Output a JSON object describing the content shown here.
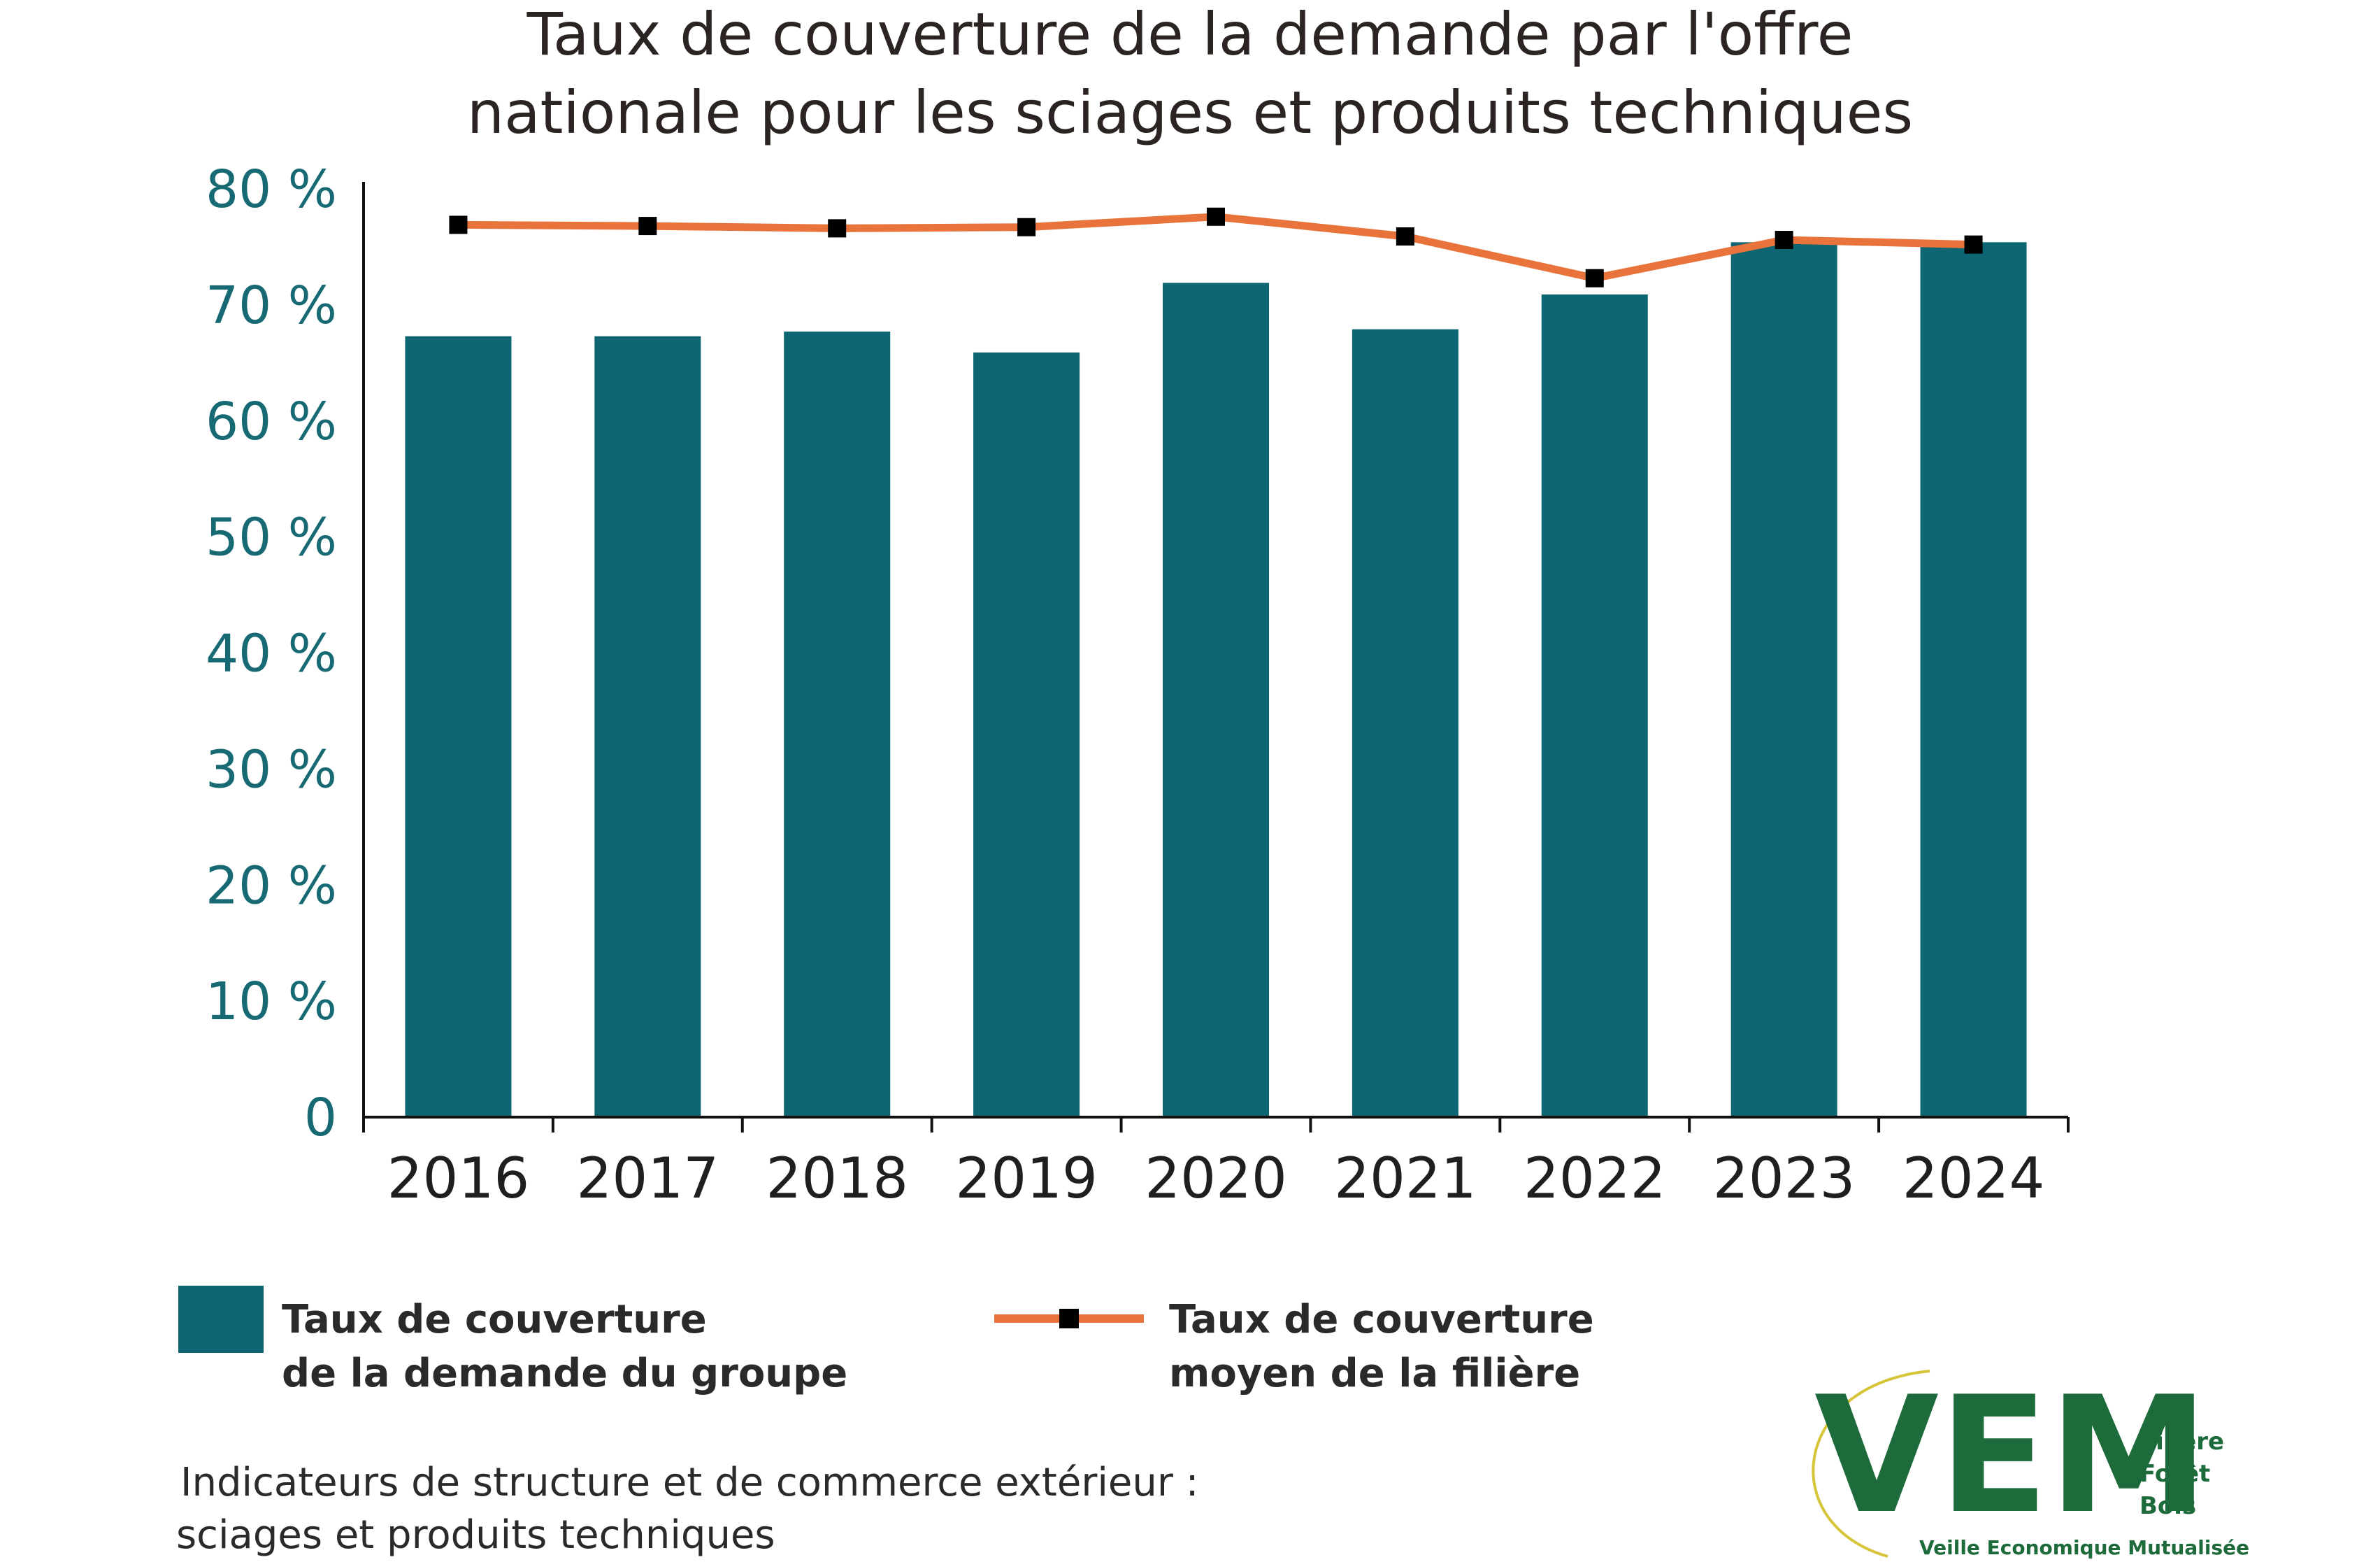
{
  "chart_data": {
    "type": "bar",
    "title": [
      "Taux de couverture de la demande par l'offre",
      "nationale pour les sciages et produits techniques"
    ],
    "categories": [
      "2016",
      "2017",
      "2018",
      "2019",
      "2020",
      "2021",
      "2022",
      "2023",
      "2024"
    ],
    "series": [
      {
        "name": "Taux de couverture de la demande du groupe",
        "type": "bar",
        "color": "#0d6672",
        "values": [
          67.3,
          67.3,
          67.7,
          65.9,
          71.9,
          67.9,
          70.9,
          75.4,
          75.4
        ]
      },
      {
        "name": "Taux de couverture moyen de la filière",
        "type": "line",
        "color": "#e8743b",
        "marker_color": "#000000",
        "values": [
          76.9,
          76.8,
          76.6,
          76.7,
          77.6,
          75.9,
          72.3,
          75.6,
          75.2
        ]
      }
    ],
    "ylim": [
      0,
      80
    ],
    "yticks": [
      0,
      10,
      20,
      30,
      40,
      50,
      60,
      70,
      80
    ],
    "ytick_labels": [
      "0",
      "10 %",
      "20 %",
      "30 %",
      "40 %",
      "50 %",
      "60 %",
      "70 %",
      "80 %"
    ],
    "legend": {
      "placement": "bottom",
      "items": [
        {
          "line1": "Taux de couverture",
          "line2": "de la demande du groupe"
        },
        {
          "line1": "Taux de couverture",
          "line2": "moyen de la filière"
        }
      ]
    },
    "grid": false
  },
  "source": {
    "line1": "Indicateurs de structure et de commerce extérieur :",
    "line2": "sciages et produits techniques"
  },
  "logo": {
    "mark": "VEM",
    "line1": "Filière",
    "line2": "Forêt",
    "line3": "Bois",
    "tagline": "Veille Economique Mutualisée"
  },
  "colors": {
    "bar": "#0d6672",
    "line": "#e8743b",
    "marker": "#000000",
    "ytick": "#176a74",
    "logo": "#1d6b3b",
    "logo_arc": "#d6c53a"
  }
}
